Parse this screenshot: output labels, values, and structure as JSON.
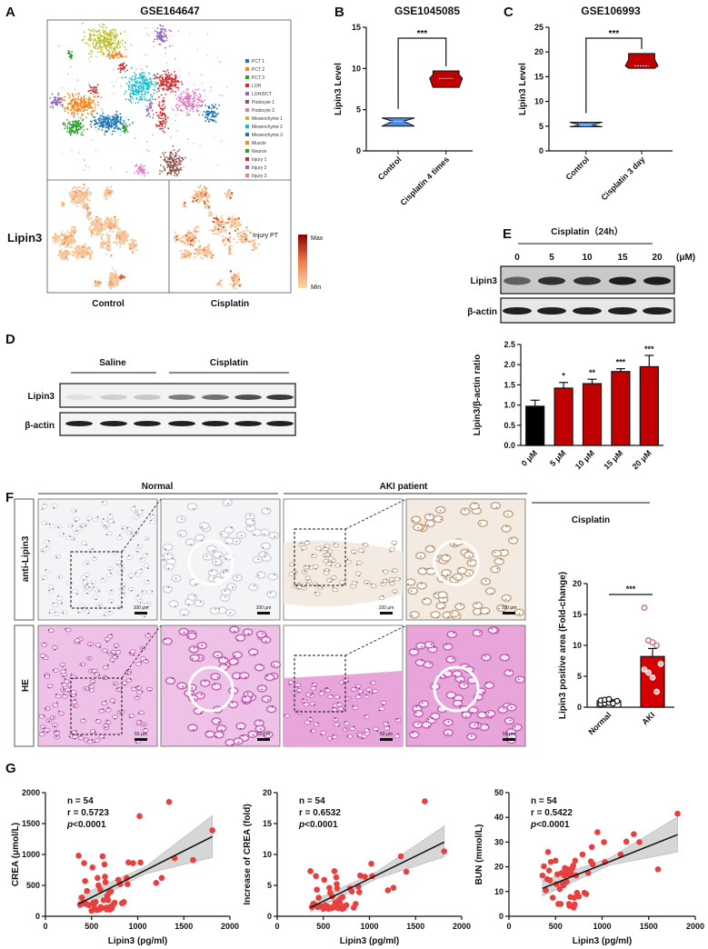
{
  "panels": {
    "A": {
      "letter": "A",
      "title": "GSE164647",
      "legend": [
        {
          "label": "PCT 1",
          "color": "#1f77b4"
        },
        {
          "label": "PCT 2",
          "color": "#ff7f0e"
        },
        {
          "label": "PCT 3",
          "color": "#2ca02c"
        },
        {
          "label": "LOH",
          "color": "#d62728"
        },
        {
          "label": "LOH/DCT",
          "color": "#9467bd"
        },
        {
          "label": "Podocyte 1",
          "color": "#8c564b"
        },
        {
          "label": "Podocyte 2",
          "color": "#e377c2"
        },
        {
          "label": "Mesenchyme 1",
          "color": "#bcbd22"
        },
        {
          "label": "Mesenchyme 2",
          "color": "#17becf"
        },
        {
          "label": "Mesenchyme 3",
          "color": "#1f6fb4"
        },
        {
          "label": "Muscle",
          "color": "#f08a24"
        },
        {
          "label": "Neuron",
          "color": "#2ca02c"
        },
        {
          "label": "Injury 1",
          "color": "#d62728"
        },
        {
          "label": "Injury 2",
          "color": "#9467bd"
        },
        {
          "label": "Injury 3",
          "color": "#e377c2"
        }
      ],
      "row_label": "Lipin3",
      "col_labels": [
        "Control",
        "Cisplatin"
      ],
      "annotation": "Injury PT",
      "colorbar": {
        "max": "Max",
        "min": "Min",
        "max_color": "#8b0000",
        "min_color": "#f7d9a8"
      }
    },
    "B": {
      "letter": "B"
    },
    "C": {
      "letter": "C"
    },
    "D": {
      "letter": "D",
      "groups": [
        "Saline",
        "Cisplatin"
      ],
      "rows": [
        "Lipin3",
        "β-actin"
      ]
    },
    "E": {
      "letter": "E",
      "header": "Cisplatin（24h）",
      "lanes": [
        "0",
        "5",
        "10",
        "15",
        "20"
      ],
      "unit": "(μM)",
      "rows": [
        "Lipin3",
        "β-actin"
      ],
      "group_label": "Cisplatin"
    },
    "F": {
      "letter": "F",
      "groups": [
        "Normal",
        "AKI patient"
      ],
      "rows": [
        "anti-Lipin3",
        "HE"
      ],
      "scale_bars": {
        "anti-Lipin3": "100 μm",
        "HE": "50 μm"
      }
    },
    "G": {
      "letter": "G"
    }
  },
  "chart_data": [
    {
      "id": "B",
      "type": "violin",
      "title": "GSE1045085",
      "ylabel": "Lipin3 Level",
      "ylim": [
        0,
        15
      ],
      "yticks": [
        0,
        5,
        10,
        15
      ],
      "categories": [
        "Control",
        "Cisplatin 4 times"
      ],
      "series": [
        {
          "category": "Control",
          "min": 3.0,
          "max": 4.0,
          "median": 3.6,
          "color": "#4a90e2"
        },
        {
          "category": "Cisplatin 4 times",
          "min": 7.7,
          "max": 9.7,
          "median": 8.8,
          "color": "#c00000"
        }
      ],
      "significance": "***"
    },
    {
      "id": "C",
      "type": "violin",
      "title": "GSE106993",
      "ylabel": "Lipin3 Level",
      "ylim": [
        0,
        25
      ],
      "yticks": [
        0,
        5,
        10,
        15,
        20,
        25
      ],
      "categories": [
        "Control",
        "Cisplatin 3 day"
      ],
      "series": [
        {
          "category": "Control",
          "min": 4.9,
          "max": 5.8,
          "median": 5.2,
          "color": "#4a90e2"
        },
        {
          "category": "Cisplatin 3 day",
          "min": 16.7,
          "max": 19.7,
          "median": 17.2,
          "color": "#c00000"
        }
      ],
      "significance": "***"
    },
    {
      "id": "E",
      "type": "bar",
      "ylabel": "Lipin3/β-actin ratio",
      "ylim": [
        0,
        2.5
      ],
      "yticks": [
        "0.0",
        "0.5",
        "1.0",
        "1.5",
        "2.0",
        "2.5"
      ],
      "categories": [
        "0 μM",
        "5 μM",
        "10 μM",
        "15 μM",
        "20 μM"
      ],
      "values": [
        0.97,
        1.42,
        1.53,
        1.83,
        1.95
      ],
      "errors": [
        0.15,
        0.14,
        0.11,
        0.07,
        0.28
      ],
      "significance": [
        "",
        "*",
        "**",
        "***",
        "***"
      ],
      "colors": [
        "#000000",
        "#c00000",
        "#c00000",
        "#c00000",
        "#c00000"
      ]
    },
    {
      "id": "F",
      "type": "bar",
      "ylabel": "Lipin3 positive area (Fold-change)",
      "ylim": [
        0,
        20
      ],
      "yticks": [
        0,
        5,
        10,
        15,
        20
      ],
      "categories": [
        "Normal",
        "AKI"
      ],
      "values": [
        1.0,
        8.2
      ],
      "errors": [
        0.15,
        1.3
      ],
      "points": [
        [
          0.5,
          0.6,
          0.7,
          0.8,
          1.0,
          1.1,
          1.2,
          1.3,
          0.6
        ],
        [
          16.1,
          10.8,
          10.5,
          10.0,
          7.0,
          6.1,
          5.6,
          4.8,
          2.5
        ]
      ],
      "colors": [
        "#ffffff",
        "#d40000"
      ],
      "significance": "***"
    },
    {
      "id": "G1",
      "type": "scatter",
      "xlabel": "Lipin3 (pg/ml)",
      "ylabel": "CREA (μmol/L)",
      "xlim": [
        0,
        2000
      ],
      "ylim": [
        0,
        2000
      ],
      "xticks": [
        0,
        500,
        1000,
        1500,
        2000
      ],
      "yticks": [
        0,
        500,
        1000,
        1500,
        2000
      ],
      "stats": {
        "n": "n = 54",
        "r": "r = 0.5723",
        "p_label": "p",
        "p": "<0.0001"
      },
      "fit": {
        "x": [
          360,
          1810
        ],
        "y": [
          200,
          1290
        ],
        "ci_low": [
          120,
          950
        ],
        "ci_high": [
          330,
          1630
        ]
      },
      "x": [
        360,
        375,
        395,
        410,
        420,
        430,
        440,
        450,
        470,
        500,
        510,
        520,
        530,
        545,
        555,
        565,
        575,
        585,
        595,
        600,
        610,
        620,
        630,
        640,
        645,
        650,
        660,
        665,
        670,
        680,
        690,
        695,
        700,
        705,
        710,
        720,
        730,
        750,
        790,
        810,
        830,
        850,
        880,
        890,
        900,
        950,
        1020,
        1030,
        1200,
        1260,
        1340,
        1400,
        1600,
        1810
      ],
      "y": [
        980,
        190,
        300,
        220,
        860,
        570,
        200,
        410,
        180,
        90,
        790,
        220,
        140,
        230,
        100,
        620,
        500,
        110,
        430,
        150,
        130,
        970,
        260,
        840,
        640,
        550,
        140,
        110,
        330,
        260,
        380,
        150,
        110,
        120,
        400,
        130,
        180,
        220,
        590,
        520,
        210,
        230,
        620,
        520,
        870,
        860,
        1620,
        870,
        540,
        620,
        1850,
        940,
        910,
        1390
      ],
      "color": "#e8403f"
    },
    {
      "id": "G2",
      "type": "scatter",
      "xlabel": "Lipin3 (pg/ml)",
      "ylabel": "Increase of CREA (fold)",
      "xlim": [
        0,
        2000
      ],
      "ylim": [
        0,
        20
      ],
      "xticks": [
        0,
        500,
        1000,
        1500,
        2000
      ],
      "yticks": [
        0,
        5,
        10,
        15,
        20
      ],
      "stats": {
        "n": "n = 54",
        "r": "r = 0.6532",
        "p_label": "p",
        "p": "<0.0001"
      },
      "fit": {
        "x": [
          360,
          1810
        ],
        "y": [
          1.4,
          12.0
        ],
        "ci_low": [
          0.7,
          9.6
        ],
        "ci_high": [
          2.3,
          14.6
        ]
      },
      "x": [
        360,
        375,
        395,
        410,
        420,
        430,
        440,
        450,
        470,
        500,
        510,
        520,
        530,
        545,
        555,
        565,
        575,
        585,
        595,
        600,
        610,
        620,
        630,
        640,
        645,
        650,
        660,
        665,
        670,
        680,
        690,
        695,
        700,
        705,
        710,
        720,
        730,
        750,
        790,
        810,
        830,
        850,
        880,
        890,
        900,
        950,
        1020,
        1030,
        1200,
        1260,
        1340,
        1400,
        1600,
        1810
      ],
      "y": [
        7.3,
        1.5,
        2.0,
        1.8,
        6.5,
        4.3,
        1.5,
        3.0,
        1.6,
        1.2,
        5.9,
        1.8,
        1.4,
        1.6,
        1.2,
        4.6,
        3.8,
        1.3,
        3.2,
        1.5,
        1.4,
        7.3,
        2.2,
        6.3,
        5.2,
        4.5,
        1.5,
        1.3,
        2.6,
        2.1,
        2.9,
        1.4,
        1.3,
        1.2,
        3.1,
        1.3,
        1.6,
        1.8,
        4.5,
        4.0,
        1.4,
        2.0,
        4.8,
        3.9,
        6.6,
        6.4,
        8.5,
        6.5,
        4.2,
        4.6,
        9.7,
        7.2,
        18.6,
        10.5
      ],
      "color": "#e8403f"
    },
    {
      "id": "G3",
      "type": "scatter",
      "xlabel": "Lipin3 (pg/ml)",
      "ylabel": "BUN (mmol/L)",
      "xlim": [
        0,
        2000
      ],
      "ylim": [
        0,
        50
      ],
      "xticks": [
        0,
        500,
        1000,
        1500,
        2000
      ],
      "yticks": [
        0,
        10,
        20,
        30,
        40,
        50
      ],
      "stats": {
        "n": "n = 54",
        "r": "r = 0.5422",
        "p_label": "p",
        "p": "<0.0001"
      },
      "fit": {
        "x": [
          360,
          1810
        ],
        "y": [
          11.3,
          33.0
        ],
        "ci_low": [
          8.2,
          26.0
        ],
        "ci_high": [
          14.5,
          40.2
        ]
      },
      "x": [
        360,
        375,
        395,
        410,
        420,
        430,
        440,
        450,
        470,
        500,
        510,
        520,
        530,
        545,
        555,
        565,
        575,
        585,
        595,
        600,
        610,
        620,
        630,
        640,
        645,
        650,
        660,
        665,
        670,
        680,
        690,
        695,
        700,
        705,
        710,
        720,
        730,
        750,
        790,
        810,
        830,
        850,
        880,
        890,
        900,
        950,
        1020,
        1030,
        1200,
        1260,
        1340,
        1400,
        1600,
        1810
      ],
      "y": [
        16.5,
        20.2,
        10.5,
        15,
        26,
        18.5,
        14.5,
        22,
        7.5,
        22.5,
        13,
        17,
        5,
        11,
        5,
        17.5,
        13.5,
        12.5,
        16.5,
        19.5,
        18,
        14,
        19,
        17,
        5,
        4.2,
        7.8,
        18.5,
        17,
        19.5,
        20.5,
        3.5,
        7.5,
        4.8,
        22.5,
        16.5,
        9.5,
        8,
        25,
        9.5,
        9,
        17.5,
        22.2,
        28,
        21,
        34,
        30,
        22,
        25,
        30.2,
        33.2,
        30,
        19,
        41.5
      ],
      "color": "#e8403f"
    }
  ]
}
